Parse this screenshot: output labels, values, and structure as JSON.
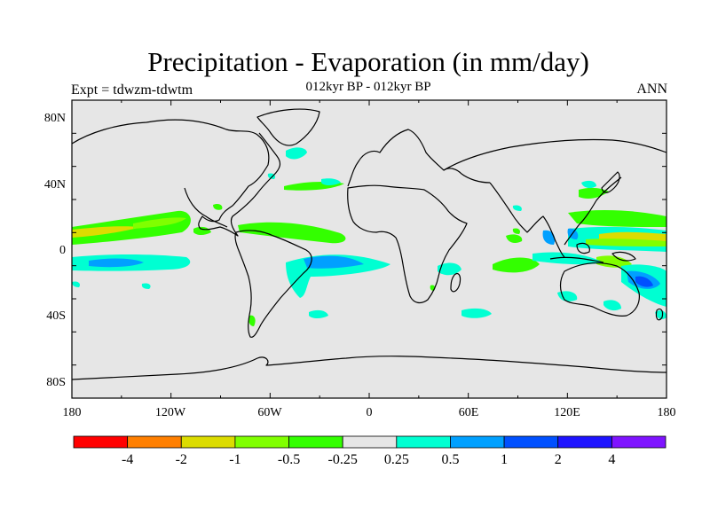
{
  "title": "Precipitation - Evaporation (in mm/day)",
  "subtitle": "012kyr BP - 012kyr BP",
  "left_label": "Expt = tdwzm-tdwtm",
  "right_label": "ANN",
  "lat_ticks": [
    "80N",
    "40N",
    "0",
    "40S",
    "80S"
  ],
  "lon_ticks": [
    "180",
    "120W",
    "60W",
    "0",
    "60E",
    "120E",
    "180"
  ],
  "colorbar": {
    "colors": [
      "#ff0000",
      "#ff7f00",
      "#dcdc00",
      "#80ff00",
      "#33ff00",
      "#e6e6e6",
      "#00ffd2",
      "#00a0ff",
      "#0050ff",
      "#1e14ff",
      "#7f14ff"
    ],
    "labels": [
      "-4",
      "-2",
      "-1",
      "-0.5",
      "-0.25",
      "0.25",
      "0.5",
      "1",
      "2",
      "4"
    ]
  },
  "colors": {
    "land_ocean_background": "#e6e6e6",
    "coastline": "#000000"
  }
}
